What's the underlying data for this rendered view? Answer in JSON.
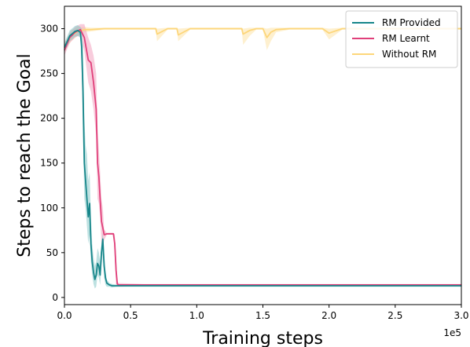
{
  "chart_data": {
    "type": "line",
    "xlabel": "Training steps",
    "ylabel": "Steps to reach the Goal",
    "x_scale_label": "1e5",
    "xlim": [
      0,
      300000
    ],
    "ylim": [
      -8,
      325
    ],
    "x_ticks": [
      0,
      50000,
      100000,
      150000,
      200000,
      250000,
      300000
    ],
    "x_tick_labels": [
      "0.0",
      "0.5",
      "1.0",
      "1.5",
      "2.0",
      "2.5",
      "3.0"
    ],
    "y_ticks": [
      0,
      50,
      100,
      150,
      200,
      250,
      300
    ],
    "y_tick_labels": [
      "0",
      "50",
      "100",
      "150",
      "200",
      "250",
      "300"
    ],
    "legend_position": "top-right",
    "grid": false,
    "series": [
      {
        "name": "Without RM",
        "color": "#fdd67a",
        "band_color": "#fde3a7",
        "x": [
          0,
          5000,
          10000,
          15000,
          20000,
          30000,
          40000,
          50000,
          60000,
          69000,
          70000,
          78000,
          85000,
          86000,
          95000,
          100000,
          120000,
          134000,
          135000,
          140000,
          145000,
          150000,
          153000,
          156000,
          160000,
          170000,
          180000,
          195000,
          200000,
          210000,
          220000,
          230000,
          240000,
          250000,
          260000,
          270000,
          280000,
          290000,
          300000
        ],
        "mean": [
          278,
          292,
          297,
          299,
          299,
          300,
          300,
          300,
          300,
          300,
          294,
          300,
          300,
          293,
          300,
          300,
          300,
          300,
          294,
          298,
          300,
          300,
          290,
          296,
          299,
          300,
          300,
          300,
          295,
          300,
          300,
          300,
          300,
          300,
          300,
          300,
          300,
          300,
          300
        ],
        "upper": [
          283,
          298,
          302,
          302,
          301,
          301,
          301,
          301,
          301,
          301,
          300,
          301,
          301,
          300,
          301,
          301,
          301,
          301,
          300,
          301,
          301,
          301,
          300,
          301,
          301,
          301,
          301,
          301,
          300,
          301,
          301,
          301,
          301,
          301,
          301,
          301,
          301,
          301,
          301
        ],
        "lower": [
          273,
          286,
          292,
          296,
          297,
          299,
          299,
          299,
          299,
          299,
          286,
          299,
          299,
          286,
          299,
          299,
          299,
          299,
          282,
          292,
          299,
          299,
          276,
          286,
          296,
          299,
          299,
          299,
          288,
          299,
          299,
          299,
          299,
          299,
          299,
          299,
          299,
          299,
          299
        ]
      },
      {
        "name": "RM Learnt",
        "color": "#e0407a",
        "band_color": "#f2a3bf",
        "x": [
          0,
          4000,
          8000,
          12000,
          15000,
          18000,
          20000,
          22000,
          24000,
          25000,
          26000,
          27000,
          28000,
          29000,
          30000,
          32000,
          36000,
          37000,
          38000,
          39000,
          40000,
          41000,
          42000,
          60000,
          100000,
          150000,
          200000,
          250000,
          300000
        ],
        "mean": [
          276,
          290,
          296,
          299,
          290,
          265,
          262,
          240,
          210,
          150,
          135,
          110,
          85,
          78,
          70,
          71,
          71,
          71,
          60,
          30,
          15,
          14,
          14,
          14,
          14,
          14,
          14,
          14,
          14
        ],
        "upper": [
          281,
          296,
          302,
          305,
          305,
          290,
          282,
          270,
          250,
          190,
          165,
          140,
          110,
          100,
          76,
          72,
          72,
          72,
          70,
          45,
          18,
          16,
          16,
          15,
          15,
          15,
          15,
          15,
          15
        ],
        "lower": [
          270,
          284,
          290,
          293,
          275,
          240,
          230,
          210,
          180,
          110,
          105,
          90,
          60,
          55,
          64,
          70,
          70,
          70,
          45,
          12,
          12,
          12,
          12,
          13,
          13,
          13,
          13,
          13,
          13
        ]
      },
      {
        "name": "RM Provided",
        "color": "#17868a",
        "band_color": "#86c9c9",
        "x": [
          0,
          4000,
          8000,
          10000,
          12000,
          13000,
          14000,
          15000,
          16000,
          17000,
          18000,
          19000,
          20000,
          21000,
          22000,
          23000,
          24000,
          25000,
          26000,
          27000,
          28000,
          29000,
          30000,
          31000,
          32000,
          34000,
          36000,
          40000,
          60000,
          100000,
          150000,
          200000,
          250000,
          300000
        ],
        "mean": [
          279,
          292,
          297,
          298,
          296,
          280,
          230,
          150,
          130,
          110,
          90,
          105,
          60,
          40,
          28,
          20,
          25,
          38,
          35,
          25,
          50,
          65,
          35,
          22,
          16,
          14,
          13,
          13,
          13,
          13,
          13,
          13,
          13,
          13
        ],
        "upper": [
          284,
          298,
          303,
          304,
          302,
          300,
          280,
          200,
          170,
          160,
          130,
          140,
          90,
          60,
          45,
          35,
          40,
          55,
          50,
          40,
          60,
          72,
          50,
          30,
          20,
          16,
          15,
          14,
          14,
          14,
          14,
          14,
          14,
          14
        ],
        "lower": [
          274,
          286,
          291,
          292,
          290,
          255,
          180,
          110,
          100,
          80,
          60,
          70,
          40,
          25,
          15,
          10,
          12,
          25,
          22,
          14,
          35,
          50,
          22,
          14,
          12,
          12,
          11,
          12,
          12,
          12,
          12,
          12,
          12,
          12
        ]
      }
    ],
    "legend_order": [
      "RM Provided",
      "RM Learnt",
      "Without RM"
    ]
  }
}
